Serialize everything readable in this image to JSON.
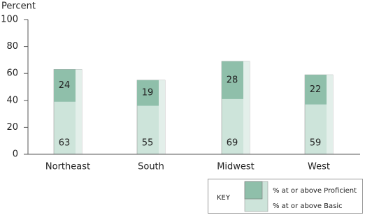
{
  "chart_data": {
    "type": "overlap-bar",
    "y_label": "Percent",
    "categories": [
      "Northeast",
      "South",
      "Midwest",
      "West"
    ],
    "series": [
      {
        "name": "% at or above Basic",
        "color": "#cde4da",
        "values": [
          63,
          55,
          69,
          59
        ]
      },
      {
        "name": "% at or above Proficient",
        "color": "#8fbfaa",
        "values": [
          24,
          19,
          28,
          22
        ]
      }
    ],
    "legend_title": "KEY",
    "ylim": [
      0,
      100
    ],
    "yticks": [
      0,
      20,
      40,
      60,
      80,
      100
    ]
  }
}
